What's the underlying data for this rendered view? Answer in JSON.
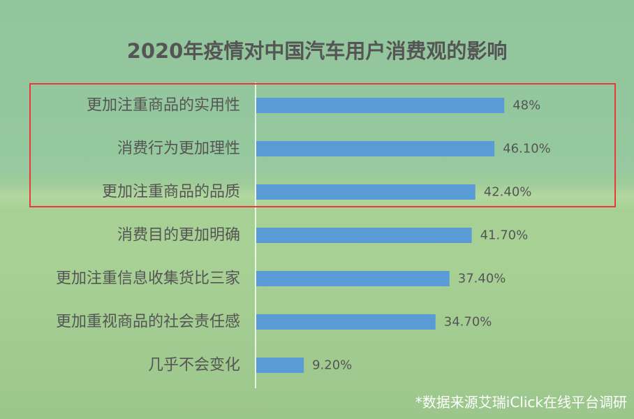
{
  "title": "2020年疫情对中国汽车用户消费观的影响",
  "source_note": "*数据来源艾瑞iClick在线平台调研",
  "colors": {
    "bar": "#5b9bd5",
    "highlight_border": "#e83a3a",
    "text": "#555555",
    "axis": "#ffffff"
  },
  "chart_data": {
    "type": "bar",
    "orientation": "horizontal",
    "title": "2020年疫情对中国汽车用户消费观的影响",
    "categories": [
      "更加注重商品的实用性",
      "消费行为更加理性",
      "更加注重商品的品质",
      "消费目的更加明确",
      "更加注重信息收集货比三家",
      "更加重视商品的社会责任感",
      "几乎不会变化"
    ],
    "values": [
      48,
      46.1,
      42.4,
      41.7,
      37.4,
      34.7,
      9.2
    ],
    "value_labels": [
      "48%",
      "46.10%",
      "42.40%",
      "41.70%",
      "37.40%",
      "34.70%",
      "9.20%"
    ],
    "xlim": [
      0,
      60
    ],
    "grid": false,
    "highlighted_categories": [
      "更加注重商品的实用性",
      "消费行为更加理性",
      "更加注重商品的品质"
    ]
  }
}
